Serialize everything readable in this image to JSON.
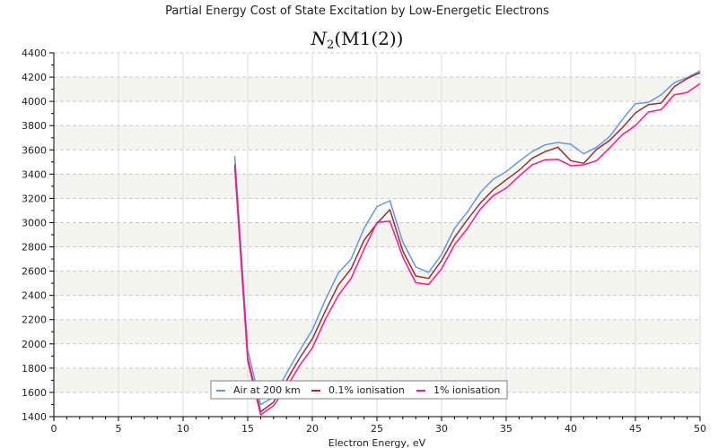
{
  "chart_data": {
    "type": "line",
    "title": "Partial Energy Cost of State Excitation by Low-Energetic Electrons",
    "subtitle_main": "N",
    "subtitle_sub": "2",
    "subtitle_rest": "(M1(2))",
    "xlabel": "Electron Energy, eV",
    "ylabel": "",
    "xlim": [
      0,
      50
    ],
    "ylim": [
      1400,
      4400
    ],
    "xticks": [
      0,
      5,
      10,
      15,
      20,
      25,
      30,
      35,
      40,
      45,
      50
    ],
    "yticks": [
      1400,
      1600,
      1800,
      2000,
      2200,
      2400,
      2600,
      2800,
      3000,
      3200,
      3400,
      3600,
      3800,
      4000,
      4200,
      4400
    ],
    "grid": true,
    "legend_position": "bottom-center",
    "x": [
      14,
      15,
      16,
      17,
      18,
      19,
      20,
      21,
      22,
      23,
      24,
      25,
      26,
      27,
      28,
      29,
      30,
      31,
      32,
      33,
      34,
      35,
      36,
      37,
      38,
      39,
      40,
      41,
      42,
      43,
      44,
      45,
      46,
      47,
      48,
      49,
      50
    ],
    "series": [
      {
        "name": "Air at 200 km",
        "color": "#6495ed",
        "values": [
          3550,
          1950,
          1500,
          1560,
          1757,
          1942,
          2115,
          2361,
          2583,
          2700,
          2952,
          3132,
          3181,
          2840,
          2635,
          2590,
          2737,
          2952,
          3087,
          3248,
          3358,
          3420,
          3506,
          3585,
          3641,
          3661,
          3646,
          3567,
          3622,
          3710,
          3851,
          3981,
          3991,
          4055,
          4154,
          4195,
          4252
        ]
      },
      {
        "name": "0.1% ionisation",
        "color": "#a52a2a",
        "values": [
          3480,
          1880,
          1440,
          1520,
          1696,
          1880,
          2041,
          2270,
          2484,
          2620,
          2854,
          2994,
          3107,
          2767,
          2560,
          2540,
          2688,
          2878,
          3025,
          3161,
          3272,
          3353,
          3432,
          3530,
          3585,
          3622,
          3511,
          3489,
          3604,
          3678,
          3784,
          3905,
          3974,
          3986,
          4121,
          4188,
          4237
        ]
      },
      {
        "name": "1% ionisation",
        "color": "#ff1493",
        "values": [
          3450,
          1860,
          1415,
          1490,
          1640,
          1819,
          1967,
          2200,
          2398,
          2540,
          2780,
          3001,
          3013,
          2717,
          2505,
          2490,
          2619,
          2817,
          2952,
          3112,
          3223,
          3284,
          3383,
          3476,
          3518,
          3523,
          3469,
          3476,
          3511,
          3617,
          3727,
          3801,
          3912,
          3932,
          4055,
          4073,
          4146
        ]
      }
    ]
  }
}
